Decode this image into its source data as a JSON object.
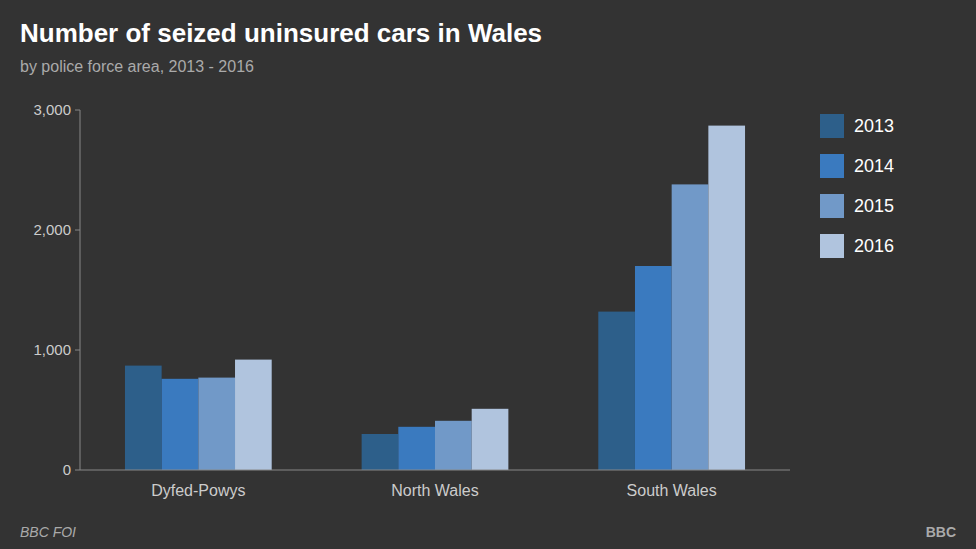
{
  "chart_data": {
    "type": "bar",
    "title": "Number of seized uninsured cars in Wales",
    "subtitle": "by police force area, 2013 - 2016",
    "categories": [
      "Dyfed-Powys",
      "North Wales",
      "South Wales"
    ],
    "series": [
      {
        "name": "2013",
        "color": "#2d5f8a",
        "values": [
          870,
          300,
          1320
        ]
      },
      {
        "name": "2014",
        "color": "#3a7abf",
        "values": [
          760,
          360,
          1700
        ]
      },
      {
        "name": "2015",
        "color": "#7199c8",
        "values": [
          770,
          410,
          2380
        ]
      },
      {
        "name": "2016",
        "color": "#b0c4de",
        "values": [
          920,
          510,
          2870
        ]
      }
    ],
    "ylim": [
      0,
      3000
    ],
    "yticks": [
      0,
      {
        "value": 1000,
        "label": "1,000"
      },
      {
        "value": 2000,
        "label": "2,000"
      },
      {
        "value": 3000,
        "label": "3,000"
      }
    ],
    "grid": false,
    "legend": "right",
    "annotations": [
      "BBC FOI",
      "BBC"
    ]
  }
}
